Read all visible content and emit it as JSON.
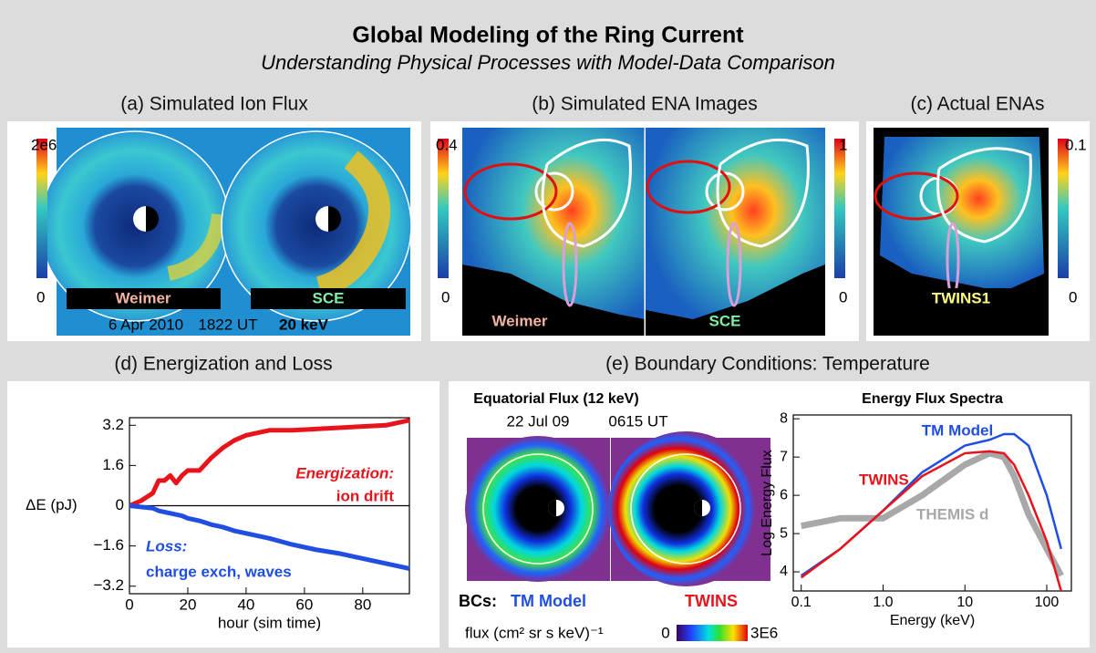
{
  "header": {
    "title": "Global Modeling of the Ring Current",
    "subtitle": "Understanding Physical Processes with Model-Data Comparison"
  },
  "panel_a": {
    "label": "(a)  Simulated Ion Flux",
    "colorbar": [
      "2e6",
      "0"
    ],
    "tags": [
      "Weimer",
      "SCE"
    ],
    "date": "6 Apr 2010",
    "time": "1822 UT",
    "energy": "20 keV"
  },
  "panel_b": {
    "label": "(b)  Simulated ENA Images",
    "colorbar_left": [
      "0.4",
      "0"
    ],
    "colorbar_right": [
      "1",
      "0"
    ],
    "tags": [
      "Weimer",
      "SCE"
    ]
  },
  "panel_c": {
    "label": "(c)  Actual ENAs",
    "colorbar": [
      "0.1",
      "0"
    ],
    "tag": "TWINS1"
  },
  "panel_d": {
    "label": "(d)  Energization and Loss"
  },
  "panel_e": {
    "label": "(e)  Boundary Conditions:  Temperature",
    "map_title": "Equatorial Flux (12 keV)",
    "date": "22 Jul 09",
    "time": "0615 UT",
    "bcs": "BCs:",
    "left": "TM Model",
    "right": "TWINS",
    "flux_label": "flux (cm² sr s keV)⁻¹",
    "scale_min": "0",
    "scale_max": "3E6"
  },
  "chart_data": [
    {
      "type": "line",
      "x_label": "hour (sim time)",
      "y_label": "ΔE (pJ)",
      "x": [
        0,
        4,
        8,
        10,
        12,
        14,
        16,
        18,
        20,
        24,
        28,
        32,
        36,
        40,
        48,
        56,
        64,
        72,
        80,
        88,
        96
      ],
      "series": [
        {
          "name": "Energization:",
          "color": "#e8141c",
          "values": [
            0,
            0.2,
            0.5,
            1.0,
            1.0,
            1.2,
            0.9,
            1.2,
            1.4,
            1.4,
            1.9,
            2.3,
            2.6,
            2.8,
            3.0,
            3.0,
            3.05,
            3.1,
            3.15,
            3.2,
            3.4
          ]
        },
        {
          "name": "Loss:",
          "color": "#1f4ee0",
          "values": [
            0,
            -0.05,
            -0.1,
            -0.2,
            -0.25,
            -0.3,
            -0.35,
            -0.4,
            -0.5,
            -0.6,
            -0.75,
            -0.85,
            -1.0,
            -1.1,
            -1.3,
            -1.55,
            -1.75,
            -1.9,
            -2.1,
            -2.3,
            -2.5
          ]
        }
      ],
      "annotations": [
        "ion drift",
        "charge exch, waves"
      ],
      "xlim": [
        0,
        96
      ],
      "ylim": [
        -3.5,
        3.5
      ],
      "xticks": [
        0,
        20,
        40,
        60,
        80
      ],
      "yticks": [
        3.2,
        1.6,
        0,
        {
          "value": -1.6,
          "label": "−1.6"
        },
        {
          "value": -3.2,
          "label": "−3.2"
        }
      ]
    },
    {
      "type": "line",
      "title": "Energy Flux  Spectra",
      "x_label": "Energy (keV)",
      "y_label": "Log Energy Flux",
      "log_x": true,
      "x": [
        0.1,
        0.3,
        1,
        3,
        10,
        20,
        30,
        40,
        60,
        100,
        150
      ],
      "series": [
        {
          "name": "TM Model",
          "color": "#1f4ee0",
          "values": [
            3.9,
            4.6,
            5.6,
            6.6,
            7.3,
            7.45,
            7.6,
            7.6,
            7.3,
            6.0,
            4.6
          ]
        },
        {
          "name": "TWINS",
          "color": "#e8141c",
          "values": [
            3.85,
            4.6,
            5.6,
            6.5,
            7.1,
            7.15,
            7.1,
            6.8,
            6.0,
            4.8,
            3.5
          ]
        },
        {
          "name": "THEMIS d",
          "color": "#a8a8a8",
          "values": [
            5.2,
            5.4,
            5.4,
            6.0,
            6.8,
            7.1,
            7.0,
            6.5,
            5.5,
            4.6,
            3.9
          ]
        }
      ],
      "xlim": [
        0.08,
        200
      ],
      "ylim": [
        3.5,
        8.1
      ],
      "xticks": [
        0.1,
        {
          "value": 1,
          "label": "1.0"
        },
        10,
        100
      ],
      "yticks": [
        4,
        5,
        6,
        7,
        8
      ]
    }
  ]
}
